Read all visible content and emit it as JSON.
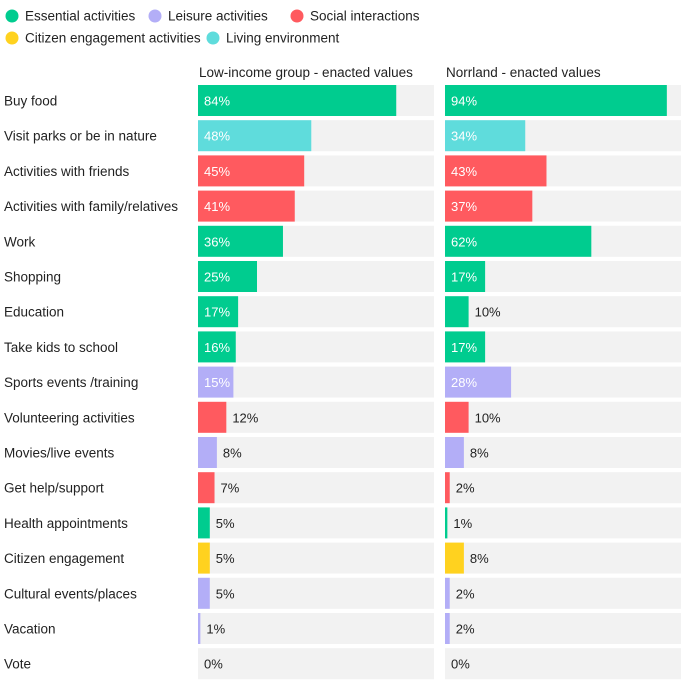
{
  "chart_data": [
    {
      "type": "bar",
      "title": "Low-income group - enacted values",
      "categories": [
        "Buy food",
        "Visit parks or be in nature",
        "Activities with friends",
        "Activities with family/relatives",
        "Work",
        "Shopping",
        "Education",
        "Take kids to school",
        "Sports events /training",
        "Volunteering activities",
        "Movies/live events",
        "Get help/support",
        "Health appointments",
        "Citizen engagement",
        "Cultural events/places",
        "Vacation",
        "Vote"
      ],
      "values": [
        84,
        48,
        45,
        41,
        36,
        25,
        17,
        16,
        15,
        12,
        8,
        7,
        5,
        5,
        5,
        1,
        0
      ],
      "value_labels": [
        "84%",
        "48%",
        "45%",
        "41%",
        "36%",
        "25%",
        "17%",
        "16%",
        "15%",
        "12%",
        "8%",
        "7%",
        "5%",
        "5%",
        "5%",
        "1%",
        "0%"
      ],
      "groups": [
        "Essential activities",
        "Living environment",
        "Social interactions",
        "Social interactions",
        "Essential activities",
        "Essential activities",
        "Essential activities",
        "Essential activities",
        "Leisure activities",
        "Social interactions",
        "Leisure activities",
        "Social interactions",
        "Essential activities",
        "Citizen engagement activities",
        "Leisure activities",
        "Leisure activities",
        "Citizen engagement activities"
      ],
      "xlim": [
        0,
        100
      ]
    },
    {
      "type": "bar",
      "title": "Norrland - enacted values",
      "categories": [
        "Buy food",
        "Visit parks or be in nature",
        "Activities with friends",
        "Activities with family/relatives",
        "Work",
        "Shopping",
        "Education",
        "Take kids to school",
        "Sports events /training",
        "Volunteering activities",
        "Movies/live events",
        "Get help/support",
        "Health appointments",
        "Citizen engagement",
        "Cultural events/places",
        "Vacation",
        "Vote"
      ],
      "values": [
        94,
        34,
        43,
        37,
        62,
        17,
        10,
        17,
        28,
        10,
        8,
        2,
        1,
        8,
        2,
        2,
        0
      ],
      "value_labels": [
        "94%",
        "34%",
        "43%",
        "37%",
        "62%",
        "17%",
        "10%",
        "17%",
        "28%",
        "10%",
        "8%",
        "2%",
        "1%",
        "8%",
        "2%",
        "2%",
        "0%"
      ],
      "groups": [
        "Essential activities",
        "Living environment",
        "Social interactions",
        "Social interactions",
        "Essential activities",
        "Essential activities",
        "Essential activities",
        "Essential activities",
        "Leisure activities",
        "Social interactions",
        "Leisure activities",
        "Social interactions",
        "Essential activities",
        "Citizen engagement activities",
        "Leisure activities",
        "Leisure activities",
        "Citizen engagement activities"
      ],
      "xlim": [
        0,
        100
      ]
    }
  ],
  "legend": [
    {
      "name": "Essential activities",
      "color": "#00cc8f"
    },
    {
      "name": "Leisure activities",
      "color": "#b3aef7"
    },
    {
      "name": "Social interactions",
      "color": "#ff5a5f"
    },
    {
      "name": "Citizen engagement activities",
      "color": "#ffd21f"
    },
    {
      "name": "Living environment",
      "color": "#5fdcdc"
    }
  ],
  "legend_placement": "top-left"
}
